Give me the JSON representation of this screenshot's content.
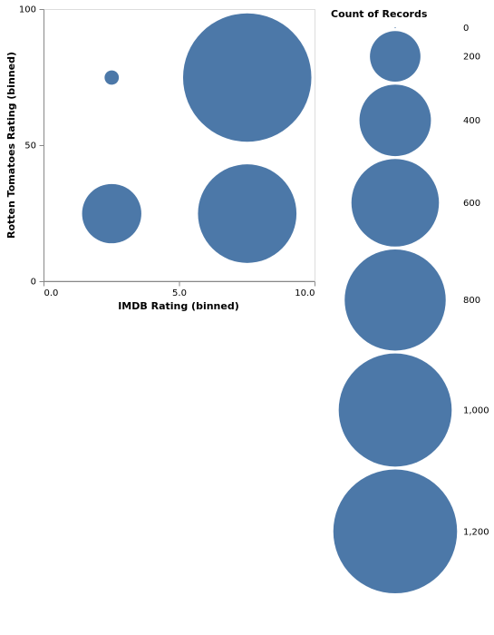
{
  "chart_data": {
    "type": "scatter",
    "mark": "circle",
    "title": "",
    "xlabel": "IMDB Rating (binned)",
    "ylabel": "Rotten Tomatoes Rating (binned)",
    "xlim": [
      0,
      10
    ],
    "ylim": [
      0,
      100
    ],
    "x_ticks": [
      0,
      5,
      10
    ],
    "x_tick_labels": [
      "0.0",
      "5.0",
      "10.0"
    ],
    "y_ticks": [
      0,
      50,
      100
    ],
    "y_tick_labels": [
      "0",
      "50",
      "100"
    ],
    "grid": false,
    "color": "#4c78a8",
    "points": [
      {
        "x": 2.5,
        "y": 75,
        "count": 16
      },
      {
        "x": 7.5,
        "y": 75,
        "count": 1290
      },
      {
        "x": 2.5,
        "y": 25,
        "count": 275
      },
      {
        "x": 7.5,
        "y": 25,
        "count": 760
      }
    ],
    "size_legend": {
      "title": "Count of Records",
      "placement": "right",
      "values": [
        0,
        200,
        400,
        600,
        800,
        1000,
        1200
      ],
      "labels": [
        "0",
        "200",
        "400",
        "600",
        "800",
        "1,000",
        "1,200"
      ]
    }
  }
}
